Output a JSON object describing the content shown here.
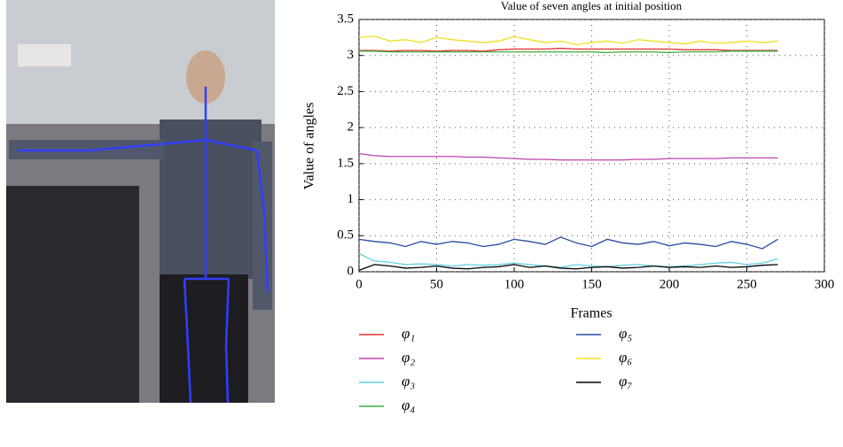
{
  "chart_data": {
    "type": "line",
    "title": "Value of seven angles at initial position",
    "x_label": "Frames",
    "y_label": "Value of angles",
    "x": [
      0,
      10,
      20,
      30,
      40,
      50,
      60,
      70,
      80,
      90,
      100,
      110,
      120,
      130,
      140,
      150,
      160,
      170,
      180,
      190,
      200,
      210,
      220,
      230,
      240,
      250,
      260,
      270
    ],
    "xlim": [
      0,
      300
    ],
    "xticks": [
      0,
      50,
      100,
      150,
      200,
      250,
      300
    ],
    "ylim": [
      0,
      3.5
    ],
    "yticks": [
      0,
      0.5,
      1,
      1.5,
      2,
      2.5,
      3,
      3.5
    ],
    "grid": true,
    "series": [
      {
        "name": "φ₁",
        "color": "#e03030",
        "values": [
          3.07,
          3.07,
          3.06,
          3.07,
          3.07,
          3.06,
          3.07,
          3.07,
          3.06,
          3.08,
          3.09,
          3.09,
          3.09,
          3.1,
          3.09,
          3.09,
          3.09,
          3.09,
          3.09,
          3.09,
          3.09,
          3.08,
          3.08,
          3.08,
          3.07,
          3.07,
          3.07,
          3.07
        ]
      },
      {
        "name": "φ₂",
        "color": "#c040b0",
        "values": [
          1.64,
          1.61,
          1.6,
          1.6,
          1.6,
          1.6,
          1.6,
          1.59,
          1.59,
          1.58,
          1.57,
          1.56,
          1.56,
          1.55,
          1.55,
          1.55,
          1.55,
          1.55,
          1.56,
          1.56,
          1.57,
          1.57,
          1.57,
          1.57,
          1.58,
          1.58,
          1.58,
          1.58
        ]
      },
      {
        "name": "φ₃",
        "color": "#60d0e0",
        "values": [
          0.25,
          0.15,
          0.13,
          0.1,
          0.11,
          0.1,
          0.08,
          0.1,
          0.09,
          0.1,
          0.12,
          0.1,
          0.08,
          0.06,
          0.1,
          0.08,
          0.07,
          0.09,
          0.1,
          0.08,
          0.07,
          0.08,
          0.1,
          0.12,
          0.13,
          0.1,
          0.12,
          0.18
        ]
      },
      {
        "name": "φ₄",
        "color": "#40b040",
        "values": [
          3.06,
          3.06,
          3.05,
          3.05,
          3.05,
          3.05,
          3.05,
          3.05,
          3.05,
          3.05,
          3.05,
          3.05,
          3.05,
          3.05,
          3.05,
          3.05,
          3.04,
          3.05,
          3.05,
          3.05,
          3.04,
          3.05,
          3.05,
          3.05,
          3.06,
          3.06,
          3.06,
          3.06
        ]
      },
      {
        "name": "φ₅",
        "color": "#2a4aa0",
        "values": [
          0.45,
          0.42,
          0.4,
          0.35,
          0.42,
          0.38,
          0.42,
          0.4,
          0.35,
          0.38,
          0.45,
          0.42,
          0.38,
          0.48,
          0.4,
          0.35,
          0.45,
          0.4,
          0.38,
          0.42,
          0.36,
          0.4,
          0.38,
          0.35,
          0.42,
          0.38,
          0.32,
          0.45
        ]
      },
      {
        "name": "φ₆",
        "color": "#f0e020",
        "values": [
          3.25,
          3.27,
          3.2,
          3.22,
          3.18,
          3.25,
          3.22,
          3.2,
          3.18,
          3.2,
          3.26,
          3.22,
          3.18,
          3.2,
          3.15,
          3.18,
          3.2,
          3.17,
          3.22,
          3.2,
          3.18,
          3.16,
          3.2,
          3.17,
          3.18,
          3.2,
          3.18,
          3.2
        ]
      },
      {
        "name": "φ₇",
        "color": "#000000",
        "values": [
          0.02,
          0.1,
          0.08,
          0.05,
          0.06,
          0.08,
          0.05,
          0.04,
          0.06,
          0.07,
          0.1,
          0.06,
          0.08,
          0.05,
          0.04,
          0.06,
          0.07,
          0.05,
          0.06,
          0.08,
          0.06,
          0.07,
          0.06,
          0.08,
          0.06,
          0.07,
          0.09,
          0.1
        ]
      }
    ]
  }
}
